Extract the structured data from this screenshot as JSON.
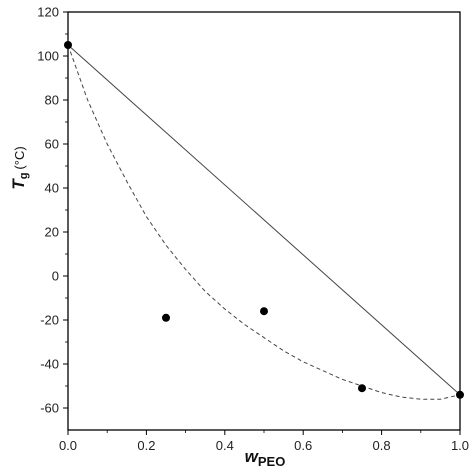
{
  "chart_data": {
    "type": "scatter",
    "xlabel_main": "w",
    "xlabel_sub": "PEO",
    "ylabel_main": "T",
    "ylabel_sub": "g",
    "ylabel_unit": "(°C)",
    "xlim": [
      0.0,
      1.0
    ],
    "ylim": [
      -70,
      120
    ],
    "xticks": [
      0.0,
      0.2,
      0.4,
      0.6,
      0.8,
      1.0
    ],
    "xtick_labels": [
      "0.0",
      "0.2",
      "0.4",
      "0.6",
      "0.8",
      "1.0"
    ],
    "yticks": [
      -60,
      -40,
      -20,
      0,
      20,
      40,
      60,
      80,
      100,
      120
    ],
    "ytick_labels": [
      "-60",
      "-40",
      "-20",
      "0",
      "20",
      "40",
      "60",
      "80",
      "100",
      "120"
    ],
    "grid": false,
    "points": [
      {
        "x": 0.0,
        "y": 105
      },
      {
        "x": 0.25,
        "y": -19
      },
      {
        "x": 0.5,
        "y": -16
      },
      {
        "x": 0.75,
        "y": -51
      },
      {
        "x": 1.0,
        "y": -54
      }
    ],
    "lines": [
      {
        "style": "solid",
        "points": [
          [
            0.0,
            105
          ],
          [
            1.0,
            -54
          ]
        ]
      },
      {
        "style": "dashed",
        "points": [
          [
            0.0,
            105
          ],
          [
            0.05,
            80
          ],
          [
            0.1,
            60
          ],
          [
            0.15,
            43
          ],
          [
            0.2,
            27
          ],
          [
            0.25,
            14
          ],
          [
            0.3,
            3
          ],
          [
            0.35,
            -7
          ],
          [
            0.4,
            -15
          ],
          [
            0.45,
            -22
          ],
          [
            0.5,
            -28
          ],
          [
            0.55,
            -34
          ],
          [
            0.6,
            -39
          ],
          [
            0.65,
            -43
          ],
          [
            0.7,
            -47
          ],
          [
            0.75,
            -50
          ],
          [
            0.8,
            -53
          ],
          [
            0.85,
            -55
          ],
          [
            0.9,
            -56
          ],
          [
            0.95,
            -56
          ],
          [
            1.0,
            -54
          ]
        ]
      }
    ],
    "colors": {
      "points": "#000000",
      "lines": "#444444",
      "axes": "#000000"
    }
  }
}
